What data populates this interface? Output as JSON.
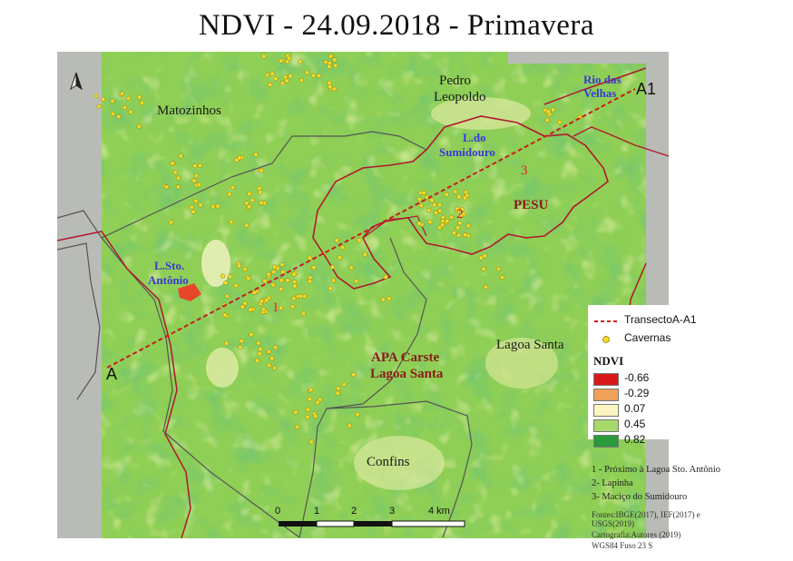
{
  "title": "NDVI - 24.09.2018 - Primavera",
  "places": {
    "matozinhos": "Matozinhos",
    "pedro_leopoldo_1": "Pedro",
    "pedro_leopoldo_2": "Leopoldo",
    "lagoa_santa": "Lagoa Santa",
    "confins": "Confins"
  },
  "water": {
    "rio_das_velhas_1": "Rio das",
    "rio_das_velhas_2": "Velhas",
    "sumidouro_1": "L.do",
    "sumidouro_2": "Sumidouro",
    "sto_antonio_1": "L.Sto.",
    "sto_antonio_2": "Antônio"
  },
  "units": {
    "pesu": "PESU",
    "apa_1": "APA Carste",
    "apa_2": "Lagoa Santa"
  },
  "transect": {
    "start": "A",
    "end": "A1"
  },
  "markers": [
    "1",
    "2",
    "3"
  ],
  "scalebar": {
    "ticks": [
      "0",
      "1",
      "2",
      "3",
      "4 km"
    ]
  },
  "legend": {
    "transect_label": "TransectoA-A1",
    "caves_label": "Cavernas",
    "ndvi_title": "NDVI",
    "ndvi_classes": [
      {
        "value": "-0.66",
        "color": "#d7191c"
      },
      {
        "value": "-0.29",
        "color": "#f0a15a"
      },
      {
        "value": "0.07",
        "color": "#fdf5c0"
      },
      {
        "value": "0.45",
        "color": "#a6d96a"
      },
      {
        "value": "0.82",
        "color": "#2a9a3a"
      }
    ],
    "transect_color": "#c81e1e",
    "cave_color": "#f2dd28"
  },
  "notes": [
    "1 - Próximo à Lagoa Sto. Antônio",
    "2- Lapinha",
    "3- Maciço do Sumidouro"
  ],
  "sources": [
    "Fontes:IBGE(2017), IEF(2017) e",
    "USGS(2019)",
    "Cartografia:Autores (2019)",
    "WGS84 Fuso 23 S"
  ],
  "north_arrow": "north-arrow-icon"
}
